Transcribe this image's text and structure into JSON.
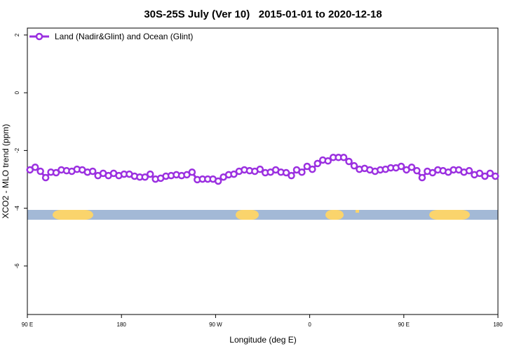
{
  "chart_data": {
    "type": "line",
    "title": "30S-25S July (Ver 10)   2015-01-01 to 2020-12-18",
    "xlabel": "Longitude (deg E)",
    "ylabel": "XCO2 - MLO trend (ppm)",
    "xlim": [
      90,
      540
    ],
    "ylim": [
      -7.68,
      2.24
    ],
    "xticks": [
      {
        "value": 90,
        "label": "90 E"
      },
      180,
      {
        "value": 270,
        "label": "90 W"
      },
      {
        "value": 360,
        "label": "0"
      },
      {
        "value": 450,
        "label": "90 E"
      },
      {
        "value": 540,
        "label": "180"
      }
    ],
    "yticks": [
      2,
      0,
      -2,
      -4,
      -6
    ],
    "legend": "top-left",
    "x": [
      92.5,
      97.5,
      102.5,
      107.5,
      112.5,
      117.5,
      122.5,
      127.5,
      132.5,
      137.5,
      142.5,
      147.5,
      152.5,
      157.5,
      162.5,
      167.5,
      172.5,
      177.5,
      182.5,
      187.5,
      192.5,
      197.5,
      202.5,
      207.5,
      212.5,
      217.5,
      222.5,
      227.5,
      232.5,
      237.5,
      242.5,
      247.5,
      252.5,
      257.5,
      262.5,
      267.5,
      272.5,
      277.5,
      282.5,
      287.5,
      292.5,
      297.5,
      302.5,
      307.5,
      312.5,
      317.5,
      322.5,
      327.5,
      332.5,
      337.5,
      342.5,
      347.5,
      352.5,
      357.5,
      362.5,
      367.5,
      372.5,
      377.5,
      382.5,
      387.5,
      392.5,
      397.5,
      402.5,
      407.5,
      412.5,
      417.5,
      422.5,
      427.5,
      432.5,
      437.5,
      442.5,
      447.5,
      452.5,
      457.5,
      462.5,
      467.5,
      472.5,
      477.5,
      482.5,
      487.5,
      492.5,
      497.5,
      502.5,
      507.5,
      512.5,
      517.5,
      522.5,
      527.5,
      532.5,
      537.5
    ],
    "series": [
      {
        "name": "Land (Nadir&Glint) and Ocean (Glint)",
        "color": "#9b30e0",
        "values": [
          -2.67,
          -2.58,
          -2.72,
          -2.94,
          -2.75,
          -2.77,
          -2.67,
          -2.7,
          -2.72,
          -2.65,
          -2.67,
          -2.75,
          -2.72,
          -2.87,
          -2.79,
          -2.87,
          -2.79,
          -2.87,
          -2.82,
          -2.82,
          -2.89,
          -2.92,
          -2.92,
          -2.82,
          -2.99,
          -2.96,
          -2.89,
          -2.87,
          -2.84,
          -2.87,
          -2.84,
          -2.75,
          -3.01,
          -2.99,
          -2.99,
          -2.99,
          -3.06,
          -2.92,
          -2.84,
          -2.82,
          -2.72,
          -2.67,
          -2.7,
          -2.72,
          -2.65,
          -2.77,
          -2.75,
          -2.67,
          -2.75,
          -2.77,
          -2.87,
          -2.67,
          -2.75,
          -2.55,
          -2.65,
          -2.45,
          -2.33,
          -2.36,
          -2.24,
          -2.24,
          -2.24,
          -2.38,
          -2.53,
          -2.65,
          -2.62,
          -2.67,
          -2.72,
          -2.67,
          -2.65,
          -2.6,
          -2.6,
          -2.55,
          -2.67,
          -2.58,
          -2.7,
          -2.94,
          -2.72,
          -2.77,
          -2.67,
          -2.7,
          -2.75,
          -2.67,
          -2.67,
          -2.75,
          -2.7,
          -2.84,
          -2.79,
          -2.89,
          -2.79,
          -2.89
        ]
      }
    ]
  }
}
